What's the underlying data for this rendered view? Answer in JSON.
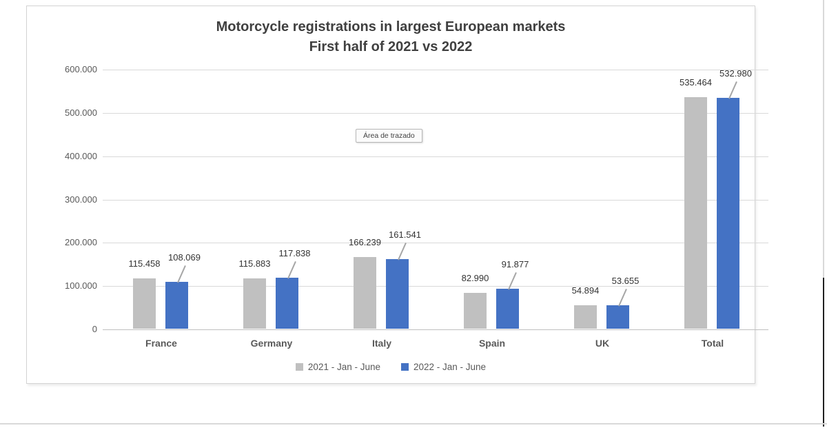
{
  "page": {
    "tooltip": "Área de trazado"
  },
  "chart_data": {
    "type": "bar",
    "title": "Motorcycle registrations in largest European markets",
    "subtitle": "First half of 2021 vs 2022",
    "categories": [
      "France",
      "Germany",
      "Italy",
      "Spain",
      "UK",
      "Total"
    ],
    "series": [
      {
        "name": "2021 - Jan - June",
        "color": "#c0c0c0",
        "values": [
          115458,
          115883,
          166239,
          82990,
          54894,
          535464
        ],
        "labels": [
          "115.458",
          "115.883",
          "166.239",
          "82.990",
          "54.894",
          "535.464"
        ]
      },
      {
        "name": "2022 - Jan - June",
        "color": "#4472c4",
        "values": [
          108069,
          117838,
          161541,
          91877,
          53655,
          532980
        ],
        "labels": [
          "108.069",
          "117.838",
          "161.541",
          "91.877",
          "53.655",
          "532.980"
        ]
      }
    ],
    "ylim": [
      0,
      600000
    ],
    "ytick_interval": 100000,
    "ytick_labels": [
      "0",
      "100.000",
      "200.000",
      "300.000",
      "400.000",
      "500.000",
      "600.000"
    ],
    "grid": true,
    "legend_position": "bottom"
  }
}
